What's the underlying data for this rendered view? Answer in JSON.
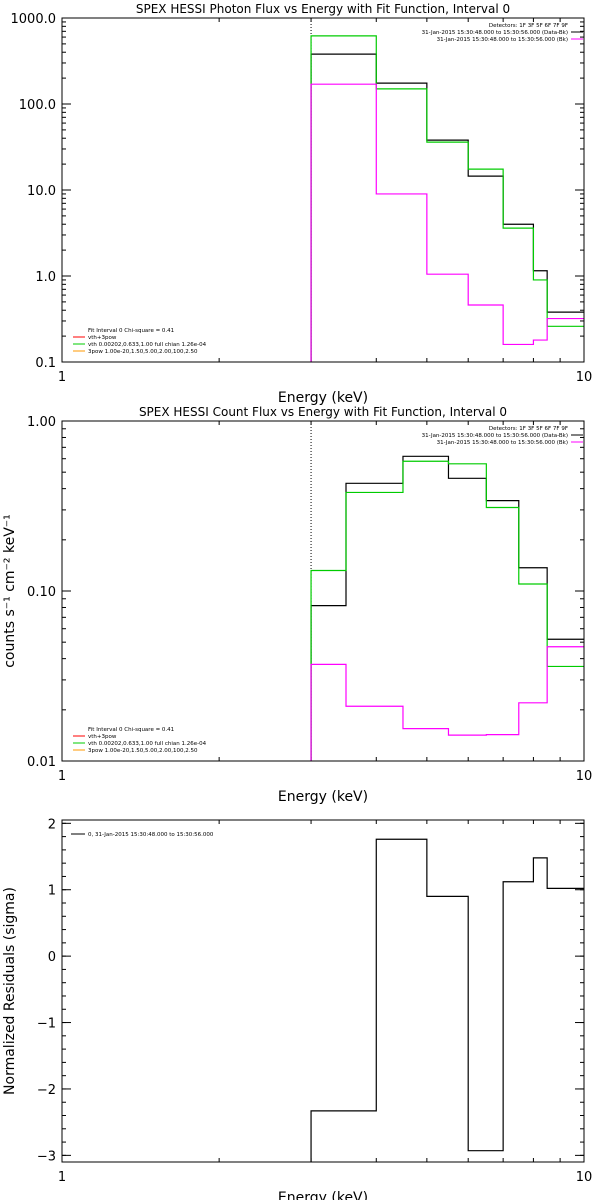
{
  "chart_data": [
    {
      "type": "line",
      "title": "SPEX HESSI Photon Flux vs Energy with Fit Function, Interval 0",
      "xlabel": "Energy (keV)",
      "ylabel": "",
      "xscale": "log",
      "yscale": "log",
      "xlim": [
        1,
        10
      ],
      "ylim": [
        0.1,
        1000
      ],
      "xticks": [
        {
          "value": 1,
          "label": "1"
        },
        {
          "value": 10,
          "label": "10"
        }
      ],
      "yticks": [
        {
          "value": 0.1,
          "label": "0.1"
        },
        {
          "value": 1,
          "label": "1.0"
        },
        {
          "value": 10,
          "label": "10.0"
        },
        {
          "value": 100,
          "label": "100.0"
        },
        {
          "value": 1000,
          "label": "1000.0"
        }
      ],
      "vline": {
        "x": 3.0,
        "style": "dotted",
        "color": "#000000"
      },
      "legend_tr": [
        {
          "text": "Detectors: 1F 3F 5F 6F 7F 9F",
          "color": null
        },
        {
          "text": "31-Jan-2015 15:30:48.000 to 15:30:56.000 (Data-Bk)",
          "color": "#000000"
        },
        {
          "text": "31-Jan-2015 15:30:48.000 to 15:30:56.000 (Bk)",
          "color": "#ff00ff"
        }
      ],
      "legend_bl": [
        {
          "text": "Fit Interval 0   Chi-square = 0.41",
          "color": null
        },
        {
          "text": "vth+3pow",
          "color": "#ff0000"
        },
        {
          "text": "vth 0.00202,0.633,1.00  full chian 1.26e-04",
          "color": "#00cc00"
        },
        {
          "text": "3pow 1.00e-20,1.50,5.00,2.00,100,2.50",
          "color": "#ff9900"
        }
      ],
      "edges": [
        3.0,
        3.5,
        4.0,
        4.5,
        5.0,
        5.5,
        6.0,
        6.5,
        7.0,
        7.5,
        8.0,
        8.5,
        9.0,
        10.0
      ],
      "series": [
        {
          "name": "31-Jan-2015 15:30:48.000 to 15:30:56.000 (Data-Bk)",
          "color": "#000000",
          "values": [
            380,
            380,
            175,
            175,
            38,
            38,
            14.5,
            14.5,
            4.0,
            4.0,
            1.15,
            0.38,
            0.38
          ]
        },
        {
          "name": "vth 0.00202,0.633,1.00  full chian 1.26e-04",
          "color": "#00cc00",
          "values": [
            620,
            620,
            150,
            150,
            36,
            36,
            17.5,
            17.5,
            3.6,
            3.6,
            0.9,
            0.26,
            0.26
          ]
        },
        {
          "name": "31-Jan-2015 15:30:48.000 to 15:30:56.000 (Bk)",
          "color": "#ff00ff",
          "values": [
            170,
            170,
            9.0,
            9.0,
            1.05,
            1.05,
            0.46,
            0.46,
            0.16,
            0.16,
            0.18,
            0.32,
            0.32
          ]
        }
      ]
    },
    {
      "type": "line",
      "title": "SPEX HESSI Count Flux vs Energy with Fit Function, Interval 0",
      "xlabel": "Energy (keV)",
      "ylabel": "counts s⁻¹ cm⁻² keV⁻¹",
      "xscale": "log",
      "yscale": "log",
      "xlim": [
        1,
        10
      ],
      "ylim": [
        0.01,
        1.0
      ],
      "xticks": [
        {
          "value": 1,
          "label": "1"
        },
        {
          "value": 10,
          "label": "10"
        }
      ],
      "yticks": [
        {
          "value": 0.01,
          "label": "0.01"
        },
        {
          "value": 0.1,
          "label": "0.10"
        },
        {
          "value": 1,
          "label": "1.00"
        }
      ],
      "vline": {
        "x": 3.0,
        "style": "dotted",
        "color": "#000000"
      },
      "legend_tr": [
        {
          "text": "Detectors: 1F 3F 5F 6F 7F 9F",
          "color": null
        },
        {
          "text": "31-Jan-2015 15:30:48.000 to 15:30:56.000 (Data-Bk)",
          "color": "#000000"
        },
        {
          "text": "31-Jan-2015 15:30:48.000 to 15:30:56.000 (Bk)",
          "color": "#ff00ff"
        }
      ],
      "legend_bl": [
        {
          "text": "Fit Interval 0   Chi-square = 0.41",
          "color": null
        },
        {
          "text": "vth+3pow",
          "color": "#ff0000"
        },
        {
          "text": "vth 0.00202,0.633,1.00  full chian 1.26e-04",
          "color": "#00cc00"
        },
        {
          "text": "3pow 1.00e-20,1.50,5.00,2.00,100,2.50",
          "color": "#ff9900"
        }
      ],
      "edges": [
        3.0,
        3.5,
        4.0,
        4.5,
        5.0,
        5.5,
        6.0,
        6.5,
        7.0,
        7.5,
        8.0,
        8.5,
        9.0,
        10.0
      ],
      "series": [
        {
          "name": "31-Jan-2015 15:30:48.000 to 15:30:56.000 (Data-Bk)",
          "color": "#000000",
          "values": [
            0.082,
            0.43,
            0.43,
            0.62,
            0.62,
            0.46,
            0.46,
            0.34,
            0.34,
            0.137,
            0.137,
            0.052,
            0.052
          ]
        },
        {
          "name": "vth 0.00202,0.633,1.00  full chian 1.26e-04",
          "color": "#00cc00",
          "values": [
            0.132,
            0.38,
            0.38,
            0.58,
            0.58,
            0.56,
            0.56,
            0.31,
            0.31,
            0.11,
            0.11,
            0.036,
            0.036
          ]
        },
        {
          "name": "31-Jan-2015 15:30:48.000 to 15:30:56.000 (Bk)",
          "color": "#ff00ff",
          "values": [
            0.037,
            0.021,
            0.021,
            0.0155,
            0.0155,
            0.0142,
            0.0142,
            0.0143,
            0.0143,
            0.022,
            0.022,
            0.047,
            0.047
          ]
        }
      ]
    },
    {
      "type": "line",
      "title": "",
      "xlabel": "Energy (keV)",
      "ylabel": "Normalized Residuals (sigma)",
      "xscale": "log",
      "yscale": "linear",
      "xlim": [
        1,
        10
      ],
      "ylim": [
        -3.1,
        2.05
      ],
      "xticks": [
        {
          "value": 1,
          "label": "1"
        },
        {
          "value": 10,
          "label": "10"
        }
      ],
      "yticks": [
        {
          "value": -3,
          "label": "−3"
        },
        {
          "value": -2,
          "label": "−2"
        },
        {
          "value": -1,
          "label": "−1"
        },
        {
          "value": 0,
          "label": "0"
        },
        {
          "value": 1,
          "label": "1"
        },
        {
          "value": 2,
          "label": "2"
        }
      ],
      "legend_tl": [
        {
          "text": "0, 31-Jan-2015 15:30:48.000 to 15:30:56.000",
          "color": "#000000"
        }
      ],
      "edges": [
        3.0,
        3.5,
        4.0,
        4.5,
        5.0,
        5.5,
        6.0,
        6.5,
        7.0,
        7.5,
        8.0,
        8.5,
        9.0,
        10.0
      ],
      "series": [
        {
          "name": "0, 31-Jan-2015 15:30:48.000 to 15:30:56.000",
          "color": "#000000",
          "values": [
            -2.33,
            -2.33,
            1.76,
            1.76,
            0.9,
            0.9,
            -2.93,
            -2.93,
            1.12,
            1.12,
            1.48,
            1.02,
            1.02
          ]
        }
      ]
    }
  ]
}
